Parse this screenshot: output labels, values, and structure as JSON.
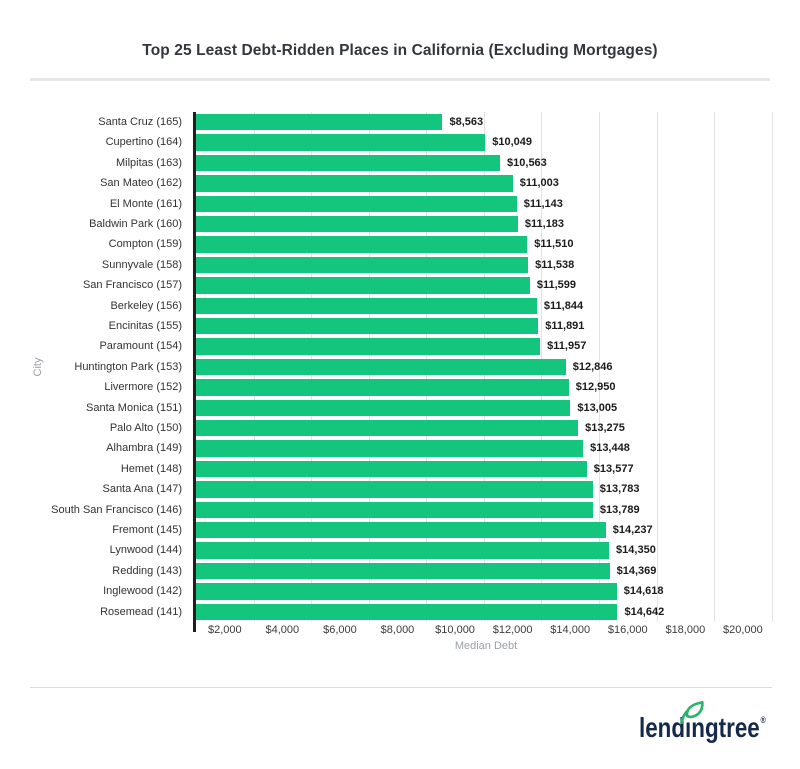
{
  "header": {
    "title": "Top 25 Least Debt-Ridden Places in California (Excluding Mortgages)"
  },
  "chart_data": {
    "type": "bar",
    "orientation": "horizontal",
    "title": "Top 25 Least Debt-Ridden Places in California (Excluding Mortgages)",
    "xlabel": "Median Debt",
    "ylabel": "City",
    "xlim": [
      0,
      20150
    ],
    "grid": true,
    "legend": "none",
    "bar_color": "#14C57E",
    "x_ticks": [
      {
        "value": 2000,
        "label": "$2,000"
      },
      {
        "value": 4000,
        "label": "$4,000"
      },
      {
        "value": 6000,
        "label": "$6,000"
      },
      {
        "value": 8000,
        "label": "$8,000"
      },
      {
        "value": 10000,
        "label": "$10,000"
      },
      {
        "value": 12000,
        "label": "$12,000"
      },
      {
        "value": 14000,
        "label": "$14,000"
      },
      {
        "value": 16000,
        "label": "$16,000"
      },
      {
        "value": 18000,
        "label": "$18,000"
      },
      {
        "value": 20000,
        "label": "$20,000"
      }
    ],
    "bars": [
      {
        "category": "Santa Cruz (165)",
        "value": 8563,
        "label": "$8,563"
      },
      {
        "category": "Cupertino (164)",
        "value": 10049,
        "label": "$10,049"
      },
      {
        "category": "Milpitas (163)",
        "value": 10563,
        "label": "$10,563"
      },
      {
        "category": "San Mateo (162)",
        "value": 11003,
        "label": "$11,003"
      },
      {
        "category": "El Monte (161)",
        "value": 11143,
        "label": "$11,143"
      },
      {
        "category": "Baldwin Park (160)",
        "value": 11183,
        "label": "$11,183"
      },
      {
        "category": "Compton (159)",
        "value": 11510,
        "label": "$11,510"
      },
      {
        "category": "Sunnyvale (158)",
        "value": 11538,
        "label": "$11,538"
      },
      {
        "category": "San Francisco (157)",
        "value": 11599,
        "label": "$11,599"
      },
      {
        "category": "Berkeley (156)",
        "value": 11844,
        "label": "$11,844"
      },
      {
        "category": "Encinitas (155)",
        "value": 11891,
        "label": "$11,891"
      },
      {
        "category": "Paramount (154)",
        "value": 11957,
        "label": "$11,957"
      },
      {
        "category": "Huntington Park (153)",
        "value": 12846,
        "label": "$12,846"
      },
      {
        "category": "Livermore (152)",
        "value": 12950,
        "label": "$12,950"
      },
      {
        "category": "Santa Monica (151)",
        "value": 13005,
        "label": "$13,005"
      },
      {
        "category": "Palo Alto (150)",
        "value": 13275,
        "label": "$13,275"
      },
      {
        "category": "Alhambra (149)",
        "value": 13448,
        "label": "$13,448"
      },
      {
        "category": "Hemet (148)",
        "value": 13577,
        "label": "$13,577"
      },
      {
        "category": "Santa Ana (147)",
        "value": 13783,
        "label": "$13,783"
      },
      {
        "category": "South San Francisco (146)",
        "value": 13789,
        "label": "$13,789"
      },
      {
        "category": "Fremont (145)",
        "value": 14237,
        "label": "$14,237"
      },
      {
        "category": "Lynwood (144)",
        "value": 14350,
        "label": "$14,350"
      },
      {
        "category": "Redding (143)",
        "value": 14369,
        "label": "$14,369"
      },
      {
        "category": "Inglewood (142)",
        "value": 14618,
        "label": "$14,618"
      },
      {
        "category": "Rosemead (141)",
        "value": 14642,
        "label": "$14,642"
      }
    ]
  },
  "footer": {
    "logo_text": "lendingtree",
    "registered_mark": "®"
  },
  "colors": {
    "bar_green": "#14C57E",
    "leaf_green": "#2EB26D",
    "logo_navy": "#15294A",
    "gridline": "#E2E2E2",
    "axis_line": "#1F1F1F",
    "muted_gray": "#9BA0A5",
    "label_gray": "#333333",
    "title_gray": "#33373D"
  }
}
